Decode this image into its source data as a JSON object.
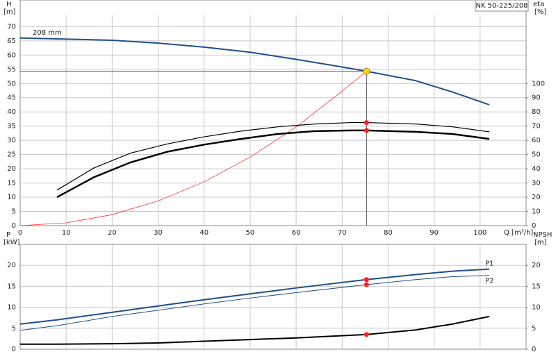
{
  "chart_data": [
    {
      "type": "line",
      "title": "NK 50-225/208",
      "y_label": "H",
      "y_unit": "[m]",
      "y2_label": "eta",
      "y2_unit": "[%]",
      "x_label": "Q [m³/h]",
      "xlim": [
        0,
        110
      ],
      "xticks": [
        0,
        10,
        20,
        30,
        40,
        50,
        60,
        70,
        80,
        90,
        100
      ],
      "ylim": [
        0,
        74
      ],
      "yticks": [
        0,
        5,
        10,
        15,
        20,
        25,
        30,
        35,
        40,
        45,
        50,
        55,
        60,
        65,
        70
      ],
      "y2lim": [
        0,
        148
      ],
      "y2ticks": [
        0,
        10,
        20,
        30,
        40,
        50,
        60,
        70,
        80,
        90,
        100
      ],
      "grid": true,
      "series": [
        {
          "name": "208 mm",
          "color": "#1f4e8c",
          "width": 2,
          "x": [
            0,
            8,
            20,
            30,
            40,
            50,
            60,
            70,
            75.3,
            86,
            94,
            102
          ],
          "values": [
            66,
            65.7,
            65.2,
            64.2,
            62.8,
            61,
            58.5,
            55.8,
            54.3,
            51,
            47,
            42.5
          ]
        },
        {
          "color": "#ff3030",
          "width": 0.8,
          "x": [
            0,
            10,
            20,
            30,
            40,
            50,
            60,
            70,
            75.3
          ],
          "values": [
            0,
            0.97,
            3.86,
            8.7,
            15.4,
            24.1,
            34.7,
            47.3,
            54.3
          ]
        },
        {
          "color": "#000000",
          "width": 1.2,
          "axis": "y2",
          "x": [
            8,
            16,
            24,
            32,
            40,
            48,
            56,
            64,
            72,
            75.3,
            86,
            94,
            102
          ],
          "values": [
            25,
            40.5,
            51,
            57.5,
            62.5,
            66.5,
            69.5,
            71.5,
            72.5,
            72.5,
            71.5,
            69.5,
            66
          ]
        },
        {
          "color": "#000000",
          "width": 2.5,
          "axis": "y2",
          "x": [
            8,
            16,
            24,
            32,
            40,
            48,
            56,
            64,
            72,
            75.3,
            86,
            94,
            102
          ],
          "values": [
            20,
            34,
            44.5,
            52,
            57,
            61,
            64.5,
            66.5,
            67,
            67,
            66,
            64.5,
            61
          ]
        }
      ],
      "duty_point": {
        "x": 75.3,
        "y": 54.3,
        "color": "#ffd700"
      },
      "markers": [
        {
          "x": 75.3,
          "y": 72.5,
          "axis": "y2",
          "color": "#ff2020"
        },
        {
          "x": 75.3,
          "y": 67,
          "axis": "y2",
          "color": "#ff2020"
        }
      ]
    },
    {
      "type": "line",
      "y_label": "P",
      "y_unit": "[kW]",
      "y2_label": "NPSH",
      "y2_unit": "[m]",
      "xlim": [
        0,
        110
      ],
      "xticks": [
        0,
        10,
        20,
        30,
        40,
        50,
        60,
        70,
        80,
        90,
        100
      ],
      "ylim": [
        0,
        25
      ],
      "yticks": [
        0,
        5,
        10,
        15,
        20
      ],
      "y2lim": [
        0,
        25
      ],
      "y2ticks": [
        0,
        5,
        10,
        15,
        20
      ],
      "grid": true,
      "series": [
        {
          "name": "P1",
          "color": "#1f4e8c",
          "width": 2,
          "x": [
            0,
            8,
            20,
            30,
            40,
            50,
            60,
            75.3,
            86,
            94,
            102
          ],
          "values": [
            6,
            7,
            8.8,
            10.3,
            11.8,
            13.2,
            14.6,
            16.6,
            17.8,
            18.6,
            19.1
          ]
        },
        {
          "name": "P2",
          "color": "#1f4e8c",
          "width": 1,
          "x": [
            0,
            8,
            20,
            30,
            40,
            50,
            60,
            75.3,
            86,
            94,
            102
          ],
          "values": [
            4.5,
            5.6,
            7.8,
            9.3,
            10.8,
            12.2,
            13.5,
            15.4,
            16.6,
            17.3,
            17.6
          ]
        },
        {
          "color": "#000000",
          "width": 2,
          "axis": "y2",
          "x": [
            0,
            8,
            20,
            30,
            40,
            50,
            60,
            75.3,
            86,
            94,
            102
          ],
          "values": [
            1.2,
            1.2,
            1.3,
            1.5,
            1.9,
            2.3,
            2.7,
            3.5,
            4.6,
            6,
            7.8
          ]
        }
      ],
      "markers": [
        {
          "x": 75.3,
          "y": 16.6,
          "color": "#ff2020"
        },
        {
          "x": 75.3,
          "y": 15.4,
          "color": "#ff2020"
        },
        {
          "x": 75.3,
          "y": 3.5,
          "axis": "y2",
          "color": "#ff2020"
        }
      ]
    }
  ]
}
